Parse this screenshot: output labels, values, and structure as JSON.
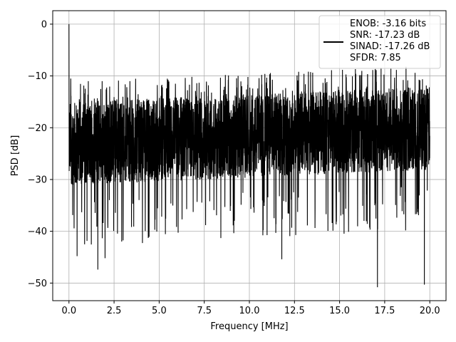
{
  "chart_data": {
    "type": "line",
    "title": "",
    "xlabel": "Frequency [MHz]",
    "ylabel": "PSD [dB]",
    "xlim": [
      -0.9,
      20.9
    ],
    "ylim": [
      -53.4,
      2.6
    ],
    "x_ticks": [
      "0.0",
      "2.5",
      "5.0",
      "7.5",
      "10.0",
      "12.5",
      "15.0",
      "17.5",
      "20.0"
    ],
    "x_tick_values": [
      0,
      2.5,
      5,
      7.5,
      10,
      12.5,
      15,
      17.5,
      20
    ],
    "y_ticks": [
      "0",
      "−10",
      "−20",
      "−30",
      "−40",
      "−50"
    ],
    "y_tick_values": [
      0,
      -10,
      -20,
      -30,
      -40,
      -50
    ],
    "grid": true,
    "legend_position": "top-right",
    "colors": {
      "line": "#000000",
      "grid": "#b0b0b0",
      "frame": "#000000"
    },
    "series": [
      {
        "name": "",
        "legend_lines": [
          "ENOB: -3.16 bits",
          "SNR: -17.23 dB",
          "SINAD: -17.26 dB",
          "SFDR: 7.85"
        ],
        "x_range": [
          0,
          20
        ],
        "band_start": {
          "upper": -15,
          "lower": -34
        },
        "band_end": {
          "upper": -12,
          "lower": -31
        },
        "peaks": [
          {
            "x": 0.0,
            "y": 0
          },
          {
            "x": 0.1,
            "y": -10.5
          },
          {
            "x": 17.3,
            "y": -8.4
          },
          {
            "x": 17.1,
            "y": -50.8
          },
          {
            "x": 19.7,
            "y": -50.3
          },
          {
            "x": 1.6,
            "y": -47.4
          },
          {
            "x": 2.0,
            "y": -45.2
          },
          {
            "x": 11.8,
            "y": -45.4
          },
          {
            "x": 0.45,
            "y": -44.8
          }
        ]
      }
    ]
  }
}
